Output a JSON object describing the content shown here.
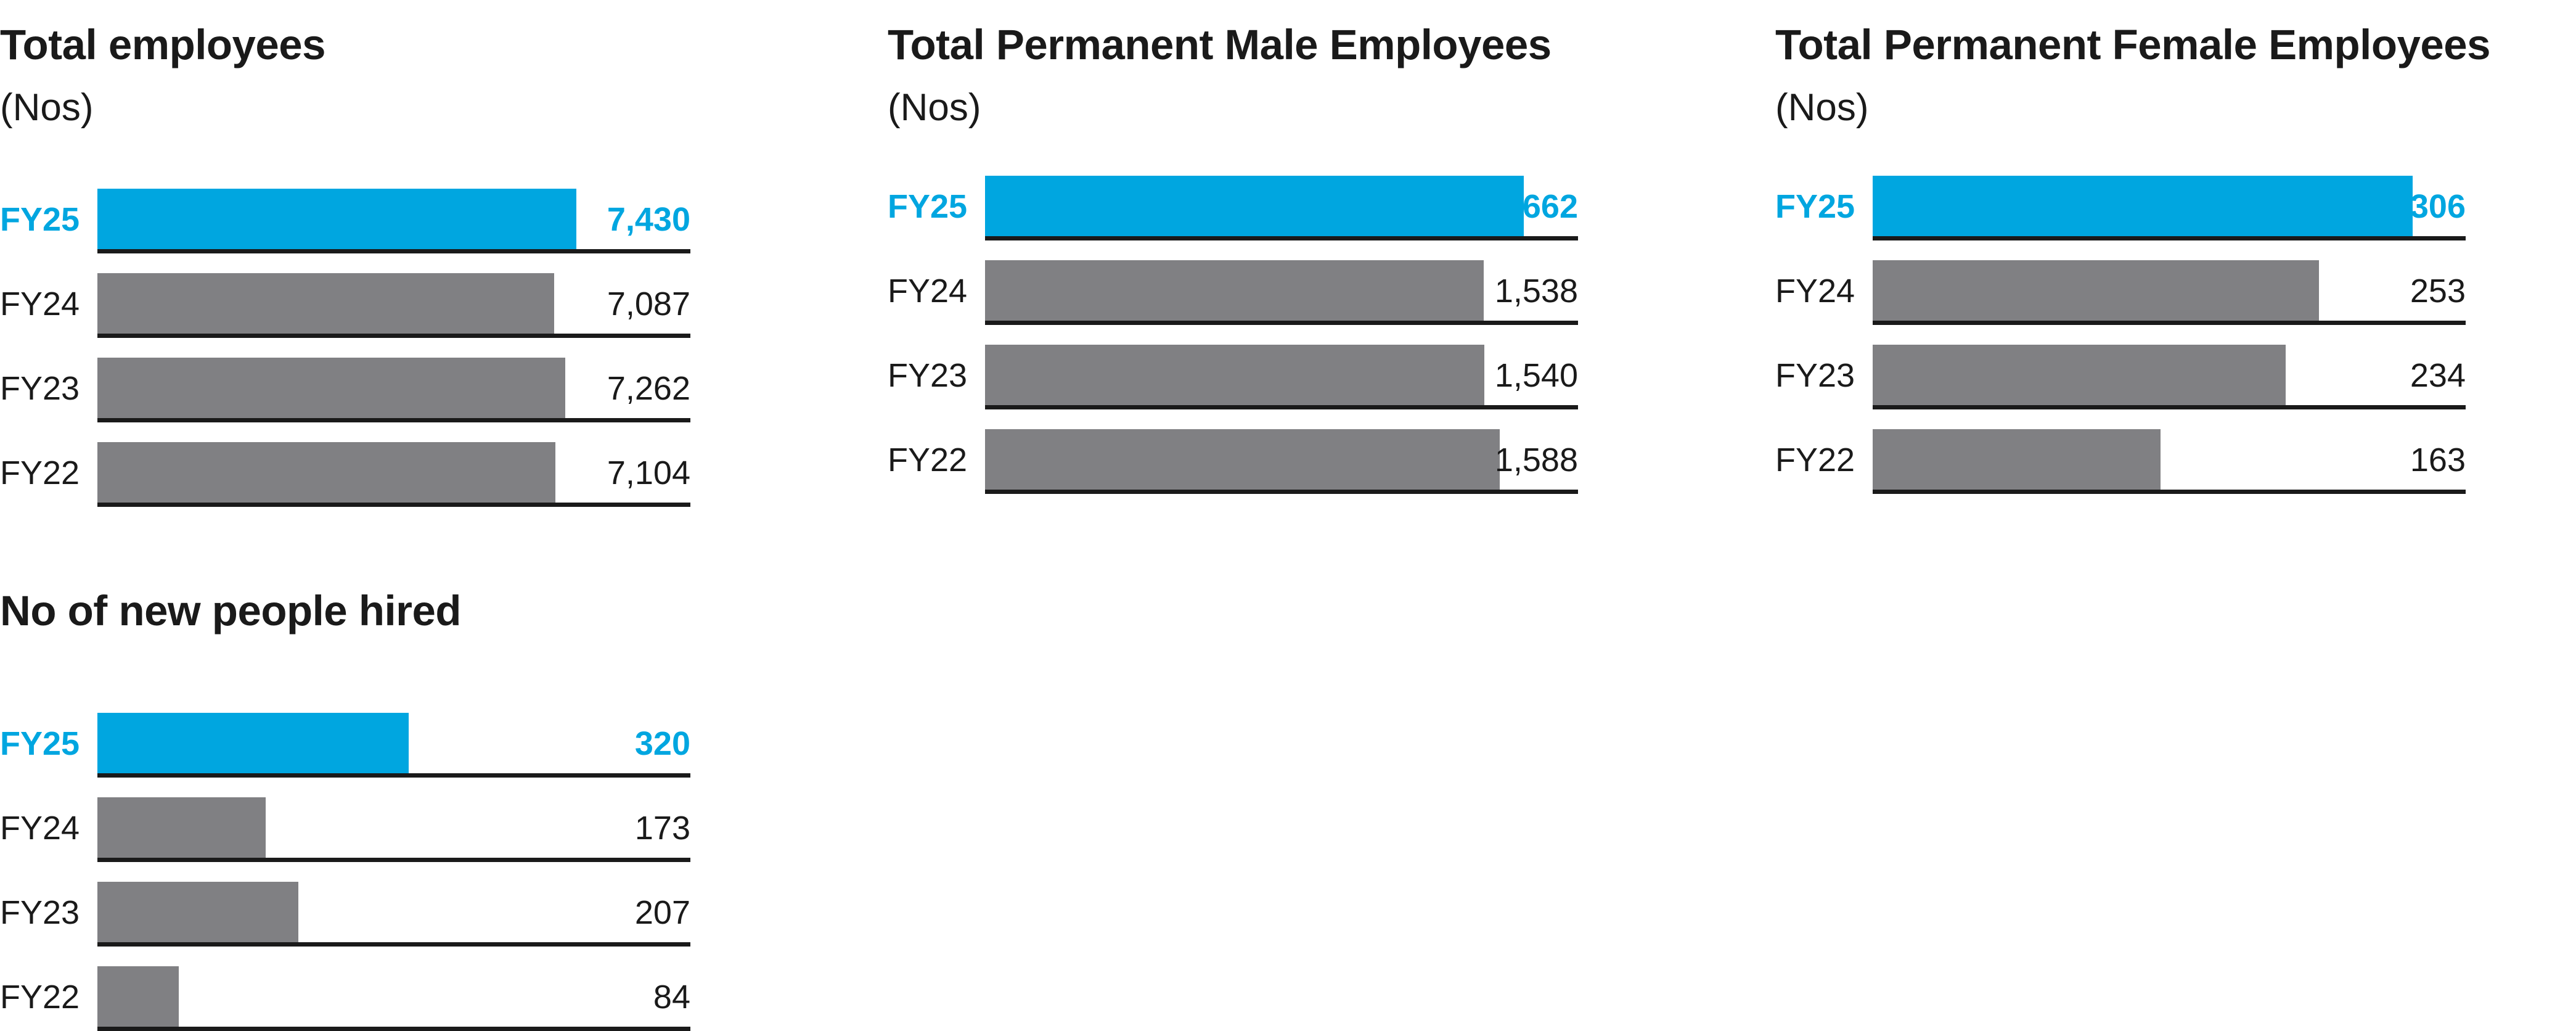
{
  "colors": {
    "highlight": "#00a6e0",
    "bar": "#808083",
    "text": "#1a1a1a"
  },
  "chart_data": [
    {
      "type": "bar",
      "orientation": "horizontal",
      "title": "Total employees",
      "unit": "(Nos)",
      "categories": [
        "FY25",
        "FY24",
        "FY23",
        "FY22"
      ],
      "values": [
        7430,
        7087,
        7262,
        7104
      ],
      "labels": [
        "7,430",
        "7,087",
        "7,262",
        "7,104"
      ],
      "highlight": "FY25"
    },
    {
      "type": "bar",
      "orientation": "horizontal",
      "title": "Total Permanent Male Employees",
      "unit": "(Nos)",
      "categories": [
        "FY25",
        "FY24",
        "FY23",
        "FY22"
      ],
      "values": [
        1662,
        1538,
        1540,
        1588
      ],
      "labels": [
        "1,662",
        "1,538",
        "1,540",
        "1,588"
      ],
      "highlight": "FY25"
    },
    {
      "type": "bar",
      "orientation": "horizontal",
      "title": "Total Permanent Female Employees",
      "unit": "(Nos)",
      "categories": [
        "FY25",
        "FY24",
        "FY23",
        "FY22"
      ],
      "values": [
        306,
        253,
        234,
        163
      ],
      "labels": [
        "306",
        "253",
        "234",
        "163"
      ],
      "highlight": "FY25"
    },
    {
      "type": "bar",
      "orientation": "horizontal",
      "title": "No of new people hired",
      "unit": "",
      "categories": [
        "FY25",
        "FY24",
        "FY23",
        "FY22"
      ],
      "values": [
        320,
        173,
        207,
        84
      ],
      "labels": [
        "320",
        "173",
        "207",
        "84"
      ],
      "highlight": "FY25"
    }
  ]
}
